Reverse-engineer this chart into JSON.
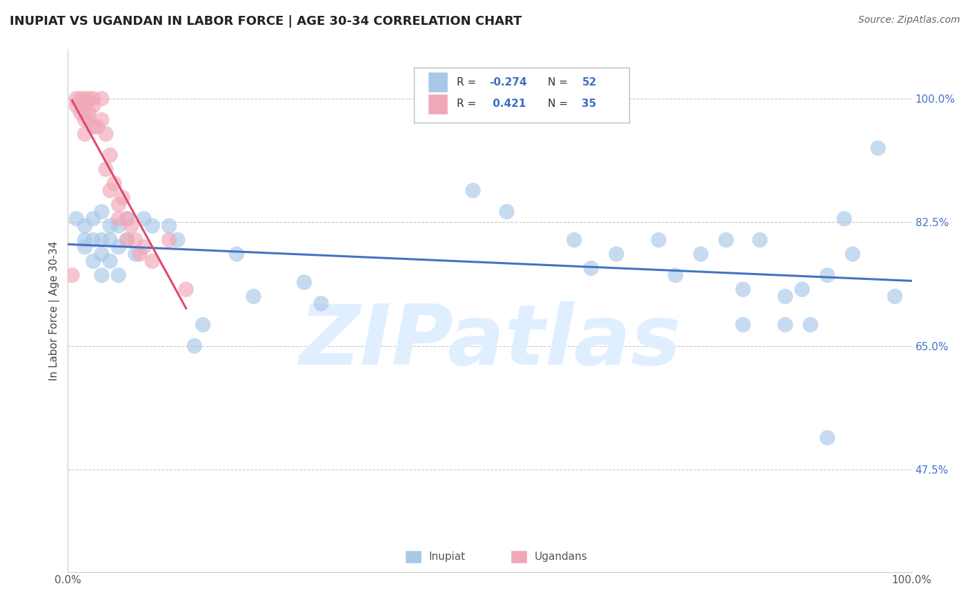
{
  "title": "INUPIAT VS UGANDAN IN LABOR FORCE | AGE 30-34 CORRELATION CHART",
  "source": "Source: ZipAtlas.com",
  "ylabel": "In Labor Force | Age 30-34",
  "ytick_labels": [
    "47.5%",
    "65.0%",
    "82.5%",
    "100.0%"
  ],
  "ytick_values": [
    0.475,
    0.65,
    0.825,
    1.0
  ],
  "xtick_labels": [
    "0.0%",
    "100.0%"
  ],
  "xtick_values": [
    0.0,
    1.0
  ],
  "xlim": [
    0.0,
    1.0
  ],
  "ylim": [
    0.33,
    1.07
  ],
  "blue_fill": "#a8c8e8",
  "pink_fill": "#f0a8b8",
  "blue_line": "#4472c4",
  "pink_line": "#e04868",
  "watermark_color": "#ddeeff",
  "inupiat_x": [
    0.01,
    0.02,
    0.02,
    0.02,
    0.03,
    0.03,
    0.03,
    0.04,
    0.04,
    0.04,
    0.04,
    0.05,
    0.05,
    0.05,
    0.06,
    0.06,
    0.06,
    0.07,
    0.07,
    0.08,
    0.09,
    0.1,
    0.12,
    0.13,
    0.15,
    0.16,
    0.2,
    0.22,
    0.28,
    0.3,
    0.48,
    0.52,
    0.6,
    0.62,
    0.65,
    0.7,
    0.72,
    0.75,
    0.78,
    0.8,
    0.8,
    0.82,
    0.85,
    0.85,
    0.87,
    0.88,
    0.9,
    0.9,
    0.92,
    0.93,
    0.96,
    0.98
  ],
  "inupiat_y": [
    0.83,
    0.8,
    0.82,
    0.79,
    0.83,
    0.8,
    0.77,
    0.84,
    0.8,
    0.78,
    0.75,
    0.82,
    0.8,
    0.77,
    0.82,
    0.79,
    0.75,
    0.83,
    0.8,
    0.78,
    0.83,
    0.82,
    0.82,
    0.8,
    0.65,
    0.68,
    0.78,
    0.72,
    0.74,
    0.71,
    0.87,
    0.84,
    0.8,
    0.76,
    0.78,
    0.8,
    0.75,
    0.78,
    0.8,
    0.73,
    0.68,
    0.8,
    0.72,
    0.68,
    0.73,
    0.68,
    0.75,
    0.52,
    0.83,
    0.78,
    0.93,
    0.72
  ],
  "ugandan_x": [
    0.005,
    0.01,
    0.01,
    0.015,
    0.015,
    0.02,
    0.02,
    0.02,
    0.02,
    0.025,
    0.025,
    0.025,
    0.03,
    0.03,
    0.03,
    0.035,
    0.04,
    0.04,
    0.045,
    0.045,
    0.05,
    0.05,
    0.055,
    0.06,
    0.06,
    0.065,
    0.07,
    0.07,
    0.075,
    0.08,
    0.085,
    0.09,
    0.1,
    0.12,
    0.14
  ],
  "ugandan_y": [
    0.75,
    1.0,
    0.99,
    1.0,
    0.98,
    1.0,
    0.99,
    0.97,
    0.95,
    1.0,
    0.98,
    0.97,
    1.0,
    0.99,
    0.96,
    0.96,
    1.0,
    0.97,
    0.95,
    0.9,
    0.92,
    0.87,
    0.88,
    0.85,
    0.83,
    0.86,
    0.83,
    0.8,
    0.82,
    0.8,
    0.78,
    0.79,
    0.77,
    0.8,
    0.73
  ]
}
